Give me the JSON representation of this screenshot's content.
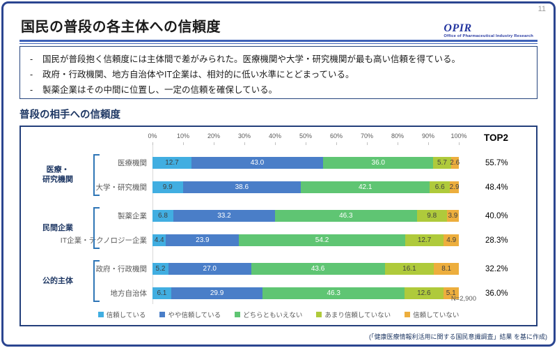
{
  "page": {
    "number": "11",
    "title": "国民の普段の各主体への信頼度",
    "source_note": "(「健康医療情報利活用に関する国民意識調査」結果 を基に作成)"
  },
  "logo": {
    "acronym": "OPIR",
    "subtitle": "Office of Pharmaceutical Industry Research"
  },
  "bullet_marker": "-",
  "summary_bullets": [
    "国民が普段抱く信頼度には主体間で差がみられた。医療機関や大学・研究機関が最も高い信頼を得ている。",
    "政府・行政機関、地方自治体やIT企業は、相対的に低い水準にとどまっている。",
    "製薬企業はその中間に位置し、一定の信頼を確保している。"
  ],
  "section_title": "普段の相手への信頼度",
  "chart_data": {
    "type": "bar",
    "stacked": true,
    "orientation": "horizontal",
    "title": "普段の相手への信頼度",
    "xlim": [
      0,
      100
    ],
    "x_ticks": [
      "0%",
      "10%",
      "20%",
      "30%",
      "40%",
      "50%",
      "60%",
      "70%",
      "80%",
      "90%",
      "100%"
    ],
    "top2_header": "TOP2",
    "n_label": "N=2,900",
    "legend": [
      {
        "key": "trust",
        "label": "信頼している",
        "color": "#41AEE1",
        "text_color": "#3f3f3f"
      },
      {
        "key": "somewhat-trust",
        "label": "やや信頼している",
        "color": "#4A7EC8",
        "text_color": "#ffffff"
      },
      {
        "key": "neutral",
        "label": "どちらともいえない",
        "color": "#5FC573",
        "text_color": "#ffffff"
      },
      {
        "key": "somewhat-distrust",
        "label": "あまり信頼していない",
        "color": "#AFCA3B",
        "text_color": "#3f3f3f"
      },
      {
        "key": "distrust",
        "label": "信頼していない",
        "color": "#EDAE3D",
        "text_color": "#3f3f3f"
      }
    ],
    "groups": [
      {
        "label": "医療・\n研究機関",
        "row_indexes": [
          0,
          1
        ]
      },
      {
        "label": "民間企業",
        "row_indexes": [
          2,
          3
        ]
      },
      {
        "label": "公的主体",
        "row_indexes": [
          4,
          5
        ]
      }
    ],
    "rows": [
      {
        "label": "医療機関",
        "values": [
          12.7,
          43.0,
          36.0,
          5.7,
          2.6
        ],
        "top2": "55.7%"
      },
      {
        "label": "大学・研究機関",
        "values": [
          9.9,
          38.6,
          42.1,
          6.6,
          2.9
        ],
        "top2": "48.4%"
      },
      {
        "label": "製薬企業",
        "values": [
          6.8,
          33.2,
          46.3,
          9.8,
          3.9
        ],
        "top2": "40.0%"
      },
      {
        "label": "IT企業・テクノロジー企業",
        "values": [
          4.4,
          23.9,
          54.2,
          12.7,
          4.9
        ],
        "top2": "28.3%"
      },
      {
        "label": "政府・行政機関",
        "values": [
          5.2,
          27.0,
          43.6,
          16.1,
          8.1
        ],
        "top2": "32.2%"
      },
      {
        "label": "地方自治体",
        "values": [
          6.1,
          29.9,
          46.3,
          12.6,
          5.1
        ],
        "top2": "36.0%"
      }
    ]
  }
}
